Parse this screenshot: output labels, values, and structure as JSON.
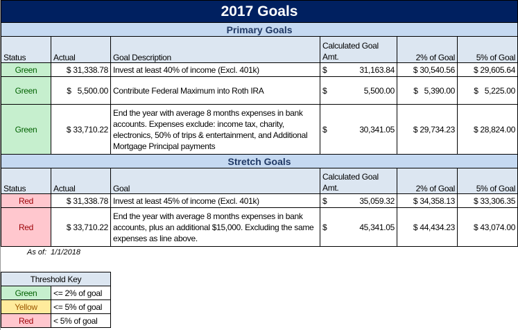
{
  "title": "2017 Goals",
  "primary": {
    "heading": "Primary Goals",
    "headers": {
      "status": "Status",
      "actual": "Actual",
      "desc": "Goal Description",
      "calc": "Calculated Goal Amt.",
      "p2": "2% of Goal",
      "p5": "5% of Goal"
    },
    "rows": [
      {
        "status": "Green",
        "actual": "$ 31,338.78",
        "desc": "Invest at least 40% of income (Excl. 401k)",
        "calc_sym": "$",
        "calc": "31,163.84",
        "p2": "$ 30,540.56",
        "p5": "$ 29,605.64"
      },
      {
        "status": "Green",
        "actual": "$   5,500.00",
        "desc": "Contribute Federal Maximum into Roth IRA",
        "calc_sym": "$",
        "calc": "5,500.00",
        "p2": "$   5,390.00",
        "p5": "$   5,225.00"
      },
      {
        "status": "Green",
        "actual": "$ 33,710.22",
        "desc": "End the year with average 8 months expenses in bank accounts.  Expenses exclude: income tax, charity, electronics, 50% of trips & entertainment, and Additional Mortgage Principal payments",
        "calc_sym": "$",
        "calc": "30,341.05",
        "p2": "$ 29,734.23",
        "p5": "$ 28,824.00"
      }
    ]
  },
  "stretch": {
    "heading": "Stretch Goals",
    "headers": {
      "status": "Status",
      "actual": "Actual",
      "desc": "Goal",
      "calc": "Calculated Goal Amt.",
      "p2": "2% of Goal",
      "p5": "5% of Goal"
    },
    "rows": [
      {
        "status": "Red",
        "actual": "$ 31,338.78",
        "desc": "Invest at least 45% of income (Excl. 401k)",
        "calc_sym": "$",
        "calc": "35,059.32",
        "p2": "$ 34,358.13",
        "p5": "$ 33,306.35"
      },
      {
        "status": "Red",
        "actual": "$ 33,710.22",
        "desc": "End the year with average 8 months expenses in bank accounts, plus an additional $15,000.  Excluding the same expenses as line above.",
        "calc_sym": "$",
        "calc": "45,341.05",
        "p2": "$ 44,434.23",
        "p5": "$ 43,074.00"
      }
    ]
  },
  "as_of": {
    "label": "As of:",
    "date": "1/1/2018"
  },
  "key": {
    "title": "Threshold Key",
    "rows": [
      {
        "status": "Green",
        "rule": "<= 2% of goal"
      },
      {
        "status": "Yellow",
        "rule": "<= 5% of goal"
      },
      {
        "status": "Red",
        "rule": "< 5% of goal"
      }
    ]
  },
  "colors": {
    "navy": "#002060",
    "green_fill": "#c6efce",
    "green_text": "#006100",
    "yellow_fill": "#ffeb9c",
    "yellow_text": "#9c5700",
    "red_fill": "#ffc7ce",
    "red_text": "#9c0006"
  }
}
